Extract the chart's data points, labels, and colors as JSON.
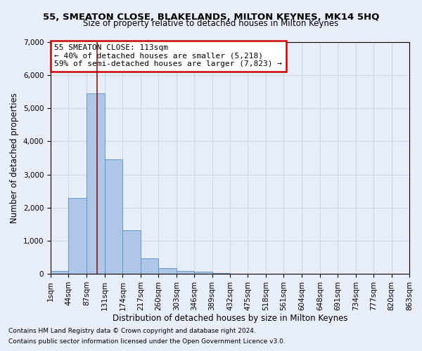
{
  "title": "55, SMEATON CLOSE, BLAKELANDS, MILTON KEYNES, MK14 5HQ",
  "subtitle": "Size of property relative to detached houses in Milton Keynes",
  "xlabel": "Distribution of detached houses by size in Milton Keynes",
  "ylabel": "Number of detached properties",
  "footnote1": "Contains HM Land Registry data © Crown copyright and database right 2024.",
  "footnote2": "Contains public sector information licensed under the Open Government Licence v3.0.",
  "bin_edges": [
    1,
    44,
    87,
    131,
    174,
    217,
    260,
    303,
    346,
    389,
    432,
    475,
    518,
    561,
    604,
    648,
    691,
    734,
    777,
    820,
    863
  ],
  "bin_labels": [
    "1sqm",
    "44sqm",
    "87sqm",
    "131sqm",
    "174sqm",
    "217sqm",
    "260sqm",
    "303sqm",
    "346sqm",
    "389sqm",
    "432sqm",
    "475sqm",
    "518sqm",
    "561sqm",
    "604sqm",
    "648sqm",
    "691sqm",
    "734sqm",
    "777sqm",
    "820sqm",
    "863sqm"
  ],
  "bar_heights": [
    80,
    2300,
    5450,
    3450,
    1320,
    470,
    160,
    90,
    60,
    30,
    10,
    0,
    0,
    0,
    0,
    0,
    0,
    0,
    0,
    0
  ],
  "bar_color": "#aec6e8",
  "bar_edge_color": "#5a8fc2",
  "vline_x": 113,
  "vline_color": "#8b1a1a",
  "ylim": [
    0,
    7000
  ],
  "yticks": [
    0,
    1000,
    2000,
    3000,
    4000,
    5000,
    6000,
    7000
  ],
  "annotation_text": "55 SMEATON CLOSE: 113sqm\n← 40% of detached houses are smaller (5,218)\n59% of semi-detached houses are larger (7,823) →",
  "annotation_box_color": "#ffffff",
  "annotation_box_edge": "#cc0000",
  "background_color": "#e8eef7",
  "grid_color": "#d0d8e8",
  "title_fontsize": 9.5,
  "subtitle_fontsize": 8.5,
  "ylabel_fontsize": 8.5,
  "xlabel_fontsize": 8.5,
  "tick_fontsize": 7.5,
  "annotation_fontsize": 8,
  "footnote_fontsize": 6.5
}
